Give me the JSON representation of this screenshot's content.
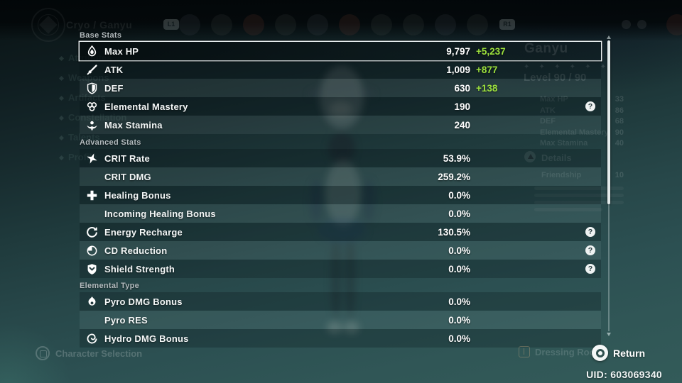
{
  "top_bar": {
    "party_label": "Cryo / Ganyu",
    "l1_label": "L1",
    "r1_label": "R1"
  },
  "sidebar": {
    "items": [
      {
        "label": "Attributes"
      },
      {
        "label": "Weapons"
      },
      {
        "label": "Artifacts"
      },
      {
        "label": "Constellation"
      },
      {
        "label": "Talents"
      },
      {
        "label": "Profile"
      }
    ]
  },
  "panel": {
    "help_glyph": "?",
    "sections": [
      {
        "title": "Base Stats",
        "rows": [
          {
            "icon": "hp",
            "label": "Max HP",
            "value": "9,797",
            "bonus": "+5,237",
            "selected": true,
            "shade": "dark"
          },
          {
            "icon": "atk",
            "label": "ATK",
            "value": "1,009",
            "bonus": "+877",
            "shade": "dark"
          },
          {
            "icon": "def",
            "label": "DEF",
            "value": "630",
            "bonus": "+138",
            "shade": "light"
          },
          {
            "icon": "em",
            "label": "Elemental Mastery",
            "value": "190",
            "help": true,
            "shade": "dark"
          },
          {
            "icon": "stamina",
            "label": "Max Stamina",
            "value": "240",
            "shade": "light"
          }
        ]
      },
      {
        "title": "Advanced Stats",
        "rows": [
          {
            "icon": "crit",
            "label": "CRIT Rate",
            "value": "53.9%",
            "shade": "dark"
          },
          {
            "icon": "",
            "label": "CRIT DMG",
            "value": "259.2%",
            "shade": "light"
          },
          {
            "icon": "heal",
            "label": "Healing Bonus",
            "value": "0.0%",
            "shade": "dark"
          },
          {
            "icon": "",
            "label": "Incoming Healing Bonus",
            "value": "0.0%",
            "shade": "light"
          },
          {
            "icon": "er",
            "label": "Energy Recharge",
            "value": "130.5%",
            "help": true,
            "shade": "dark"
          },
          {
            "icon": "cd",
            "label": "CD Reduction",
            "value": "0.0%",
            "help": true,
            "shade": "light"
          },
          {
            "icon": "shield",
            "label": "Shield Strength",
            "value": "0.0%",
            "help": true,
            "shade": "dark"
          }
        ]
      },
      {
        "title": "Elemental Type",
        "rows": [
          {
            "icon": "pyro",
            "label": "Pyro DMG Bonus",
            "value": "0.0%",
            "shade": "dark"
          },
          {
            "icon": "",
            "label": "Pyro RES",
            "value": "0.0%",
            "shade": "light"
          },
          {
            "icon": "hydro",
            "label": "Hydro DMG Bonus",
            "value": "0.0%",
            "shade": "dark"
          }
        ]
      }
    ]
  },
  "character_pane": {
    "name": "Ganyu",
    "stars": 6,
    "level_label": "Level 90 / 90",
    "stats": [
      "Max HP",
      "ATK",
      "DEF",
      "Elemental Mastery",
      "Max Stamina"
    ],
    "stat_values_partial": [
      "33",
      "86",
      "68",
      "90",
      "40"
    ],
    "details_label": "Details",
    "friendship_label": "Friendship",
    "friendship_value": "10"
  },
  "footer": {
    "character_selection": "Character Selection",
    "dressing_room": "Dressing Room",
    "return_label": "Return",
    "uid": "UID: 603069340"
  },
  "colors": {
    "bonus_green": "#9de13c",
    "bg_teal_bottom": "#335b59",
    "bg_dark_top": "#0a1314"
  }
}
